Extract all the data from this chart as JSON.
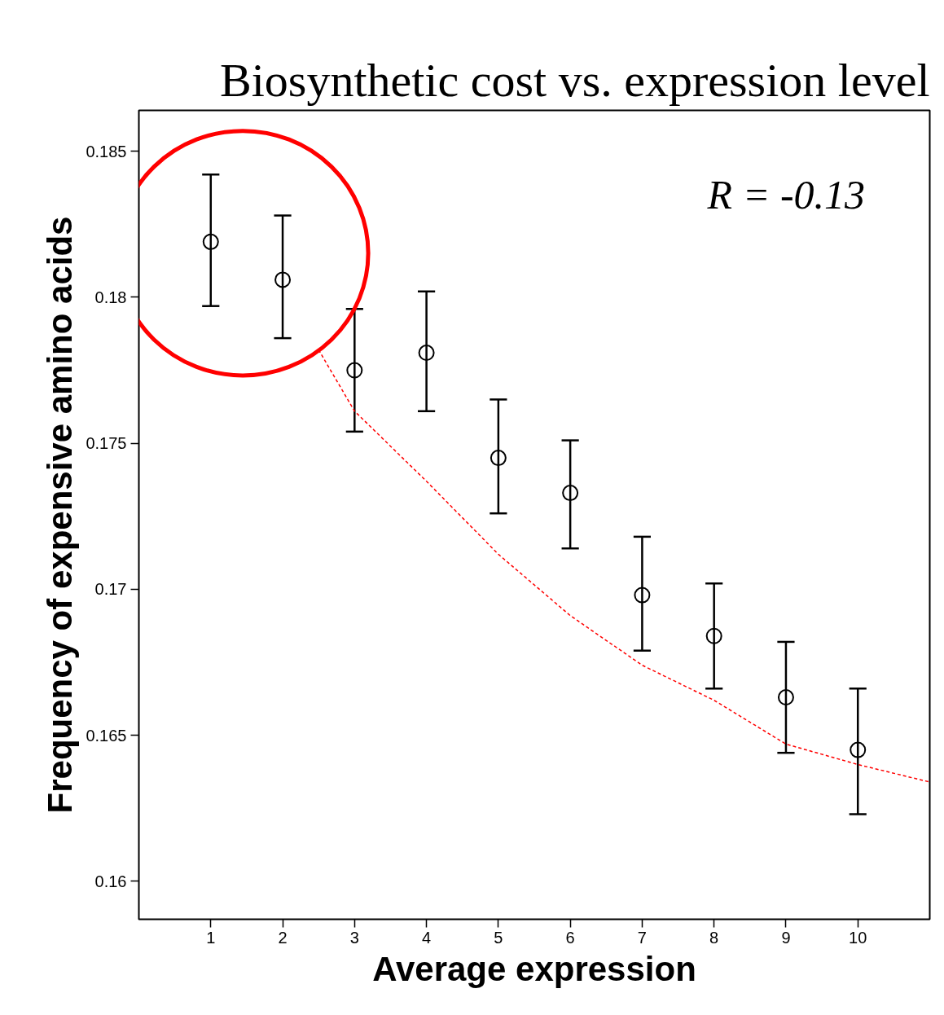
{
  "chart_data": {
    "type": "scatter",
    "title": "Biosynthetic cost vs. expression level",
    "xlabel": "Average expression",
    "ylabel": "Frequency of expensive amino acids",
    "annotations": [
      "R = -0.13"
    ],
    "xlim": [
      0,
      11
    ],
    "ylim": [
      0.1587,
      0.1864
    ],
    "xticks": [
      1,
      2,
      3,
      4,
      5,
      6,
      7,
      8,
      9,
      10
    ],
    "yticks": [
      0.16,
      0.165,
      0.17,
      0.175,
      0.18,
      0.185
    ],
    "series": [
      {
        "color": "#000000",
        "marker": "circle",
        "x": [
          1,
          2,
          3,
          4,
          5,
          6,
          7,
          8,
          9,
          10
        ],
        "values": [
          0.1819,
          0.1806,
          0.1775,
          0.1781,
          0.1745,
          0.1733,
          0.1698,
          0.1684,
          0.1663,
          0.1645
        ],
        "errors": [
          [
            0.1797,
            0.1842
          ],
          [
            0.1786,
            0.1828
          ],
          [
            0.1754,
            0.1796
          ],
          [
            0.1761,
            0.1802
          ],
          [
            0.1726,
            0.1765
          ],
          [
            0.1714,
            0.1751
          ],
          [
            0.1679,
            0.1718
          ],
          [
            0.1666,
            0.1702
          ],
          [
            0.1644,
            0.1682
          ],
          [
            0.1623,
            0.1666
          ]
        ]
      },
      {
        "type": "line",
        "color": "#ff0000",
        "line_style": "dashed",
        "x": [
          2.5,
          3,
          4,
          5,
          6,
          7,
          8,
          9,
          10,
          11
        ],
        "values": [
          0.1782,
          0.1761,
          0.1737,
          0.1712,
          0.1691,
          0.1674,
          0.1662,
          0.1647,
          0.164,
          0.1634
        ]
      }
    ]
  }
}
